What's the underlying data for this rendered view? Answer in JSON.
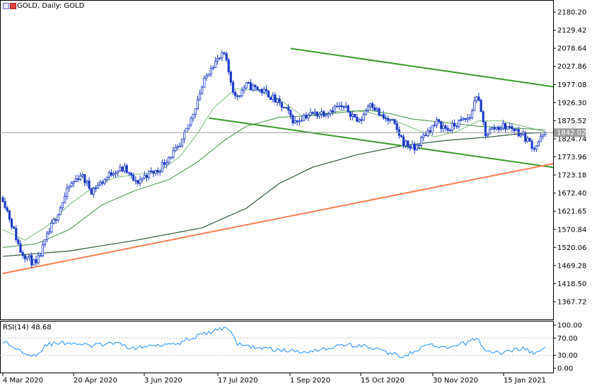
{
  "header": {
    "symbol": "GOLD",
    "title": "GOLD, Daily:  GOLD",
    "icons": [
      "chart-type-icon",
      "symbol-flag-icon"
    ]
  },
  "rsi_panel": {
    "label": "RSI(14) 48.68"
  },
  "colors": {
    "candle_up_body": "#ffffff",
    "candle_down_body": "#1e3cc8",
    "candle_outline": "#1e3cc8",
    "ma_fast": "#7bbf7b",
    "ma_medium": "#3f8f3f",
    "ma_slow": "#2f5e3a",
    "channel": "#3c9c2c",
    "support": "#ff7f50",
    "rsi_line": "#1e90ff",
    "price_marker_bg": "#9a9a9a",
    "grid": "#c8c8c8"
  },
  "chart_data": [
    {
      "type": "candlestick",
      "title": "GOLD, Daily:  GOLD",
      "x_tick_labels": [
        "4 Mar 2020",
        "20 Apr 2020",
        "3 Jun 2020",
        "17 Jul 2020",
        "1 Sep 2020",
        "15 Oct 2020",
        "30 Nov 2020",
        "15 Jan 2021"
      ],
      "y_tick_labels": [
        "2180.20",
        "2129.42",
        "2078.64",
        "2027.86",
        "1977.08",
        "1926.30",
        "1875.52",
        "1824.74",
        "1773.96",
        "1723.18",
        "1672.40",
        "1621.65",
        "1570.84",
        "1520.06",
        "1469.28",
        "1418.50",
        "1367.72"
      ],
      "ylim": [
        1316.94,
        2205.59
      ],
      "current_price": 1842.02,
      "current_price_label": "1842.02",
      "grid": false,
      "price_anchors_x": [
        0,
        8,
        15,
        20,
        25,
        30,
        35,
        40,
        45,
        50,
        55,
        60,
        65,
        70,
        75,
        80,
        85,
        89,
        94,
        100,
        105,
        110,
        115,
        120,
        125,
        128,
        132,
        136,
        141,
        146,
        151,
        156,
        161,
        166,
        171,
        176,
        181,
        186,
        191,
        196,
        201,
        206,
        211,
        214,
        218,
        222,
        226,
        230,
        235,
        240,
        245
      ],
      "price_anchors_y": [
        1660,
        1510,
        1470,
        1550,
        1620,
        1690,
        1725,
        1680,
        1705,
        1735,
        1740,
        1700,
        1725,
        1735,
        1775,
        1800,
        1880,
        1955,
        2030,
        2060,
        1940,
        1975,
        1965,
        1950,
        1920,
        1905,
        1870,
        1890,
        1895,
        1900,
        1915,
        1905,
        1870,
        1930,
        1885,
        1870,
        1815,
        1795,
        1840,
        1870,
        1850,
        1870,
        1885,
        1950,
        1840,
        1855,
        1860,
        1855,
        1835,
        1800,
        1842
      ],
      "candles": 246,
      "moving_averages": [
        {
          "period": 20,
          "points": [
            [
              0,
              1570
            ],
            [
              10,
              1540
            ],
            [
              20,
              1580
            ],
            [
              30,
              1640
            ],
            [
              40,
              1685
            ],
            [
              50,
              1715
            ],
            [
              60,
              1725
            ],
            [
              70,
              1730
            ],
            [
              80,
              1775
            ],
            [
              88,
              1840
            ],
            [
              95,
              1910
            ],
            [
              105,
              1965
            ],
            [
              115,
              1960
            ],
            [
              125,
              1935
            ],
            [
              135,
              1890
            ],
            [
              145,
              1895
            ],
            [
              155,
              1905
            ],
            [
              165,
              1900
            ],
            [
              175,
              1880
            ],
            [
              185,
              1855
            ],
            [
              195,
              1830
            ],
            [
              205,
              1845
            ],
            [
              215,
              1875
            ],
            [
              225,
              1875
            ],
            [
              235,
              1860
            ],
            [
              245,
              1845
            ]
          ]
        },
        {
          "period": 50,
          "points": [
            [
              0,
              1520
            ],
            [
              15,
              1530
            ],
            [
              30,
              1570
            ],
            [
              45,
              1640
            ],
            [
              60,
              1680
            ],
            [
              75,
              1710
            ],
            [
              88,
              1760
            ],
            [
              100,
              1820
            ],
            [
              110,
              1860
            ],
            [
              125,
              1885
            ],
            [
              140,
              1890
            ],
            [
              155,
              1900
            ],
            [
              165,
              1905
            ],
            [
              175,
              1895
            ],
            [
              185,
              1880
            ],
            [
              200,
              1870
            ],
            [
              215,
              1860
            ],
            [
              230,
              1855
            ],
            [
              245,
              1850
            ]
          ]
        },
        {
          "period": 200,
          "points": [
            [
              0,
              1495
            ],
            [
              30,
              1510
            ],
            [
              60,
              1540
            ],
            [
              90,
              1575
            ],
            [
              110,
              1630
            ],
            [
              125,
              1700
            ],
            [
              140,
              1745
            ],
            [
              160,
              1780
            ],
            [
              180,
              1805
            ],
            [
              200,
              1820
            ],
            [
              220,
              1830
            ],
            [
              235,
              1840
            ],
            [
              245,
              1842
            ]
          ]
        }
      ],
      "trendlines": [
        {
          "name": "channel-upper",
          "from": [
            130,
            2078
          ],
          "to": [
            285,
            1938
          ]
        },
        {
          "name": "channel-lower",
          "from": [
            93,
            1883
          ],
          "to": [
            285,
            1712
          ]
        },
        {
          "name": "support",
          "from": [
            0,
            1447
          ],
          "to": [
            285,
            1800
          ]
        }
      ]
    },
    {
      "type": "line",
      "title": "RSI(14) 48.68",
      "indicator": "RSI(14)",
      "value": 48.68,
      "y_tick_labels": [
        "100.00",
        "70.00",
        "30.00",
        "0.00"
      ],
      "ylim": [
        0,
        100
      ],
      "levels": [
        70,
        30
      ],
      "rsi_anchors_x": [
        0,
        8,
        15,
        20,
        30,
        40,
        50,
        60,
        70,
        80,
        88,
        95,
        100,
        103,
        106,
        115,
        125,
        135,
        145,
        155,
        165,
        175,
        180,
        186,
        192,
        200,
        210,
        214,
        218,
        225,
        235,
        240,
        245
      ],
      "rsi_anchors_y": [
        62,
        40,
        30,
        55,
        60,
        52,
        58,
        46,
        55,
        60,
        75,
        85,
        95,
        88,
        55,
        48,
        42,
        38,
        45,
        55,
        50,
        35,
        28,
        38,
        55,
        45,
        60,
        72,
        40,
        35,
        48,
        32,
        48.68
      ]
    }
  ]
}
